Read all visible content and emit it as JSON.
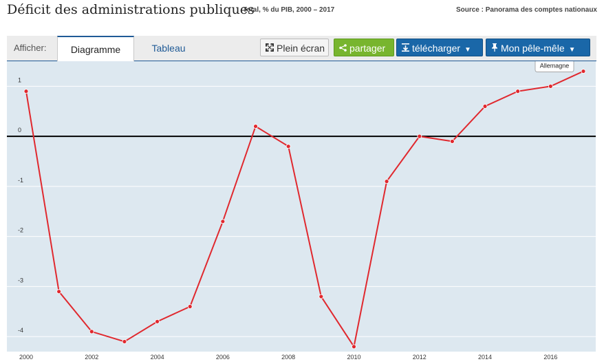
{
  "header": {
    "title": "Déficit des administrations publiques",
    "subtitle": "Total, % du PIB, 2000 – 2017",
    "source": "Source : Panorama des comptes nationaux"
  },
  "toolbar": {
    "afficher_label": "Afficher:",
    "tab_chart": "Diagramme",
    "tab_table": "Tableau",
    "fullscreen_label": "Plein écran",
    "share_label": "partager",
    "download_label": "télécharger",
    "mypage_label": "Mon pêle-mêle"
  },
  "icons": {
    "fullscreen": "expand-icon",
    "share": "share-icon",
    "download": "download-icon",
    "pin": "pin-icon",
    "caret": "caret-down-icon"
  },
  "chart_data": {
    "type": "line",
    "x": [
      2000,
      2001,
      2002,
      2003,
      2004,
      2005,
      2006,
      2007,
      2008,
      2009,
      2010,
      2011,
      2012,
      2013,
      2014,
      2015,
      2016,
      2017
    ],
    "series": [
      {
        "name": "Allemagne",
        "color": "#e0282e",
        "values": [
          0.9,
          -3.1,
          -3.9,
          -4.1,
          -3.7,
          -3.4,
          -1.7,
          0.2,
          -0.2,
          -3.2,
          -4.2,
          -0.9,
          0.0,
          -0.1,
          0.6,
          0.9,
          1.0,
          1.3
        ]
      }
    ],
    "title": "Déficit des administrations publiques",
    "xlabel": "",
    "ylabel": "",
    "xlim": [
      2000,
      2017
    ],
    "ylim": [
      -4.3,
      1.5
    ],
    "yticks": [
      1,
      0,
      -1,
      -2,
      -3,
      -4
    ],
    "xticks": [
      2000,
      2002,
      2004,
      2006,
      2008,
      2010,
      2012,
      2014,
      2016
    ],
    "grid": true,
    "background": "#dde8f0",
    "zero_line_color": "#000000",
    "tooltip": "Allemagne"
  }
}
